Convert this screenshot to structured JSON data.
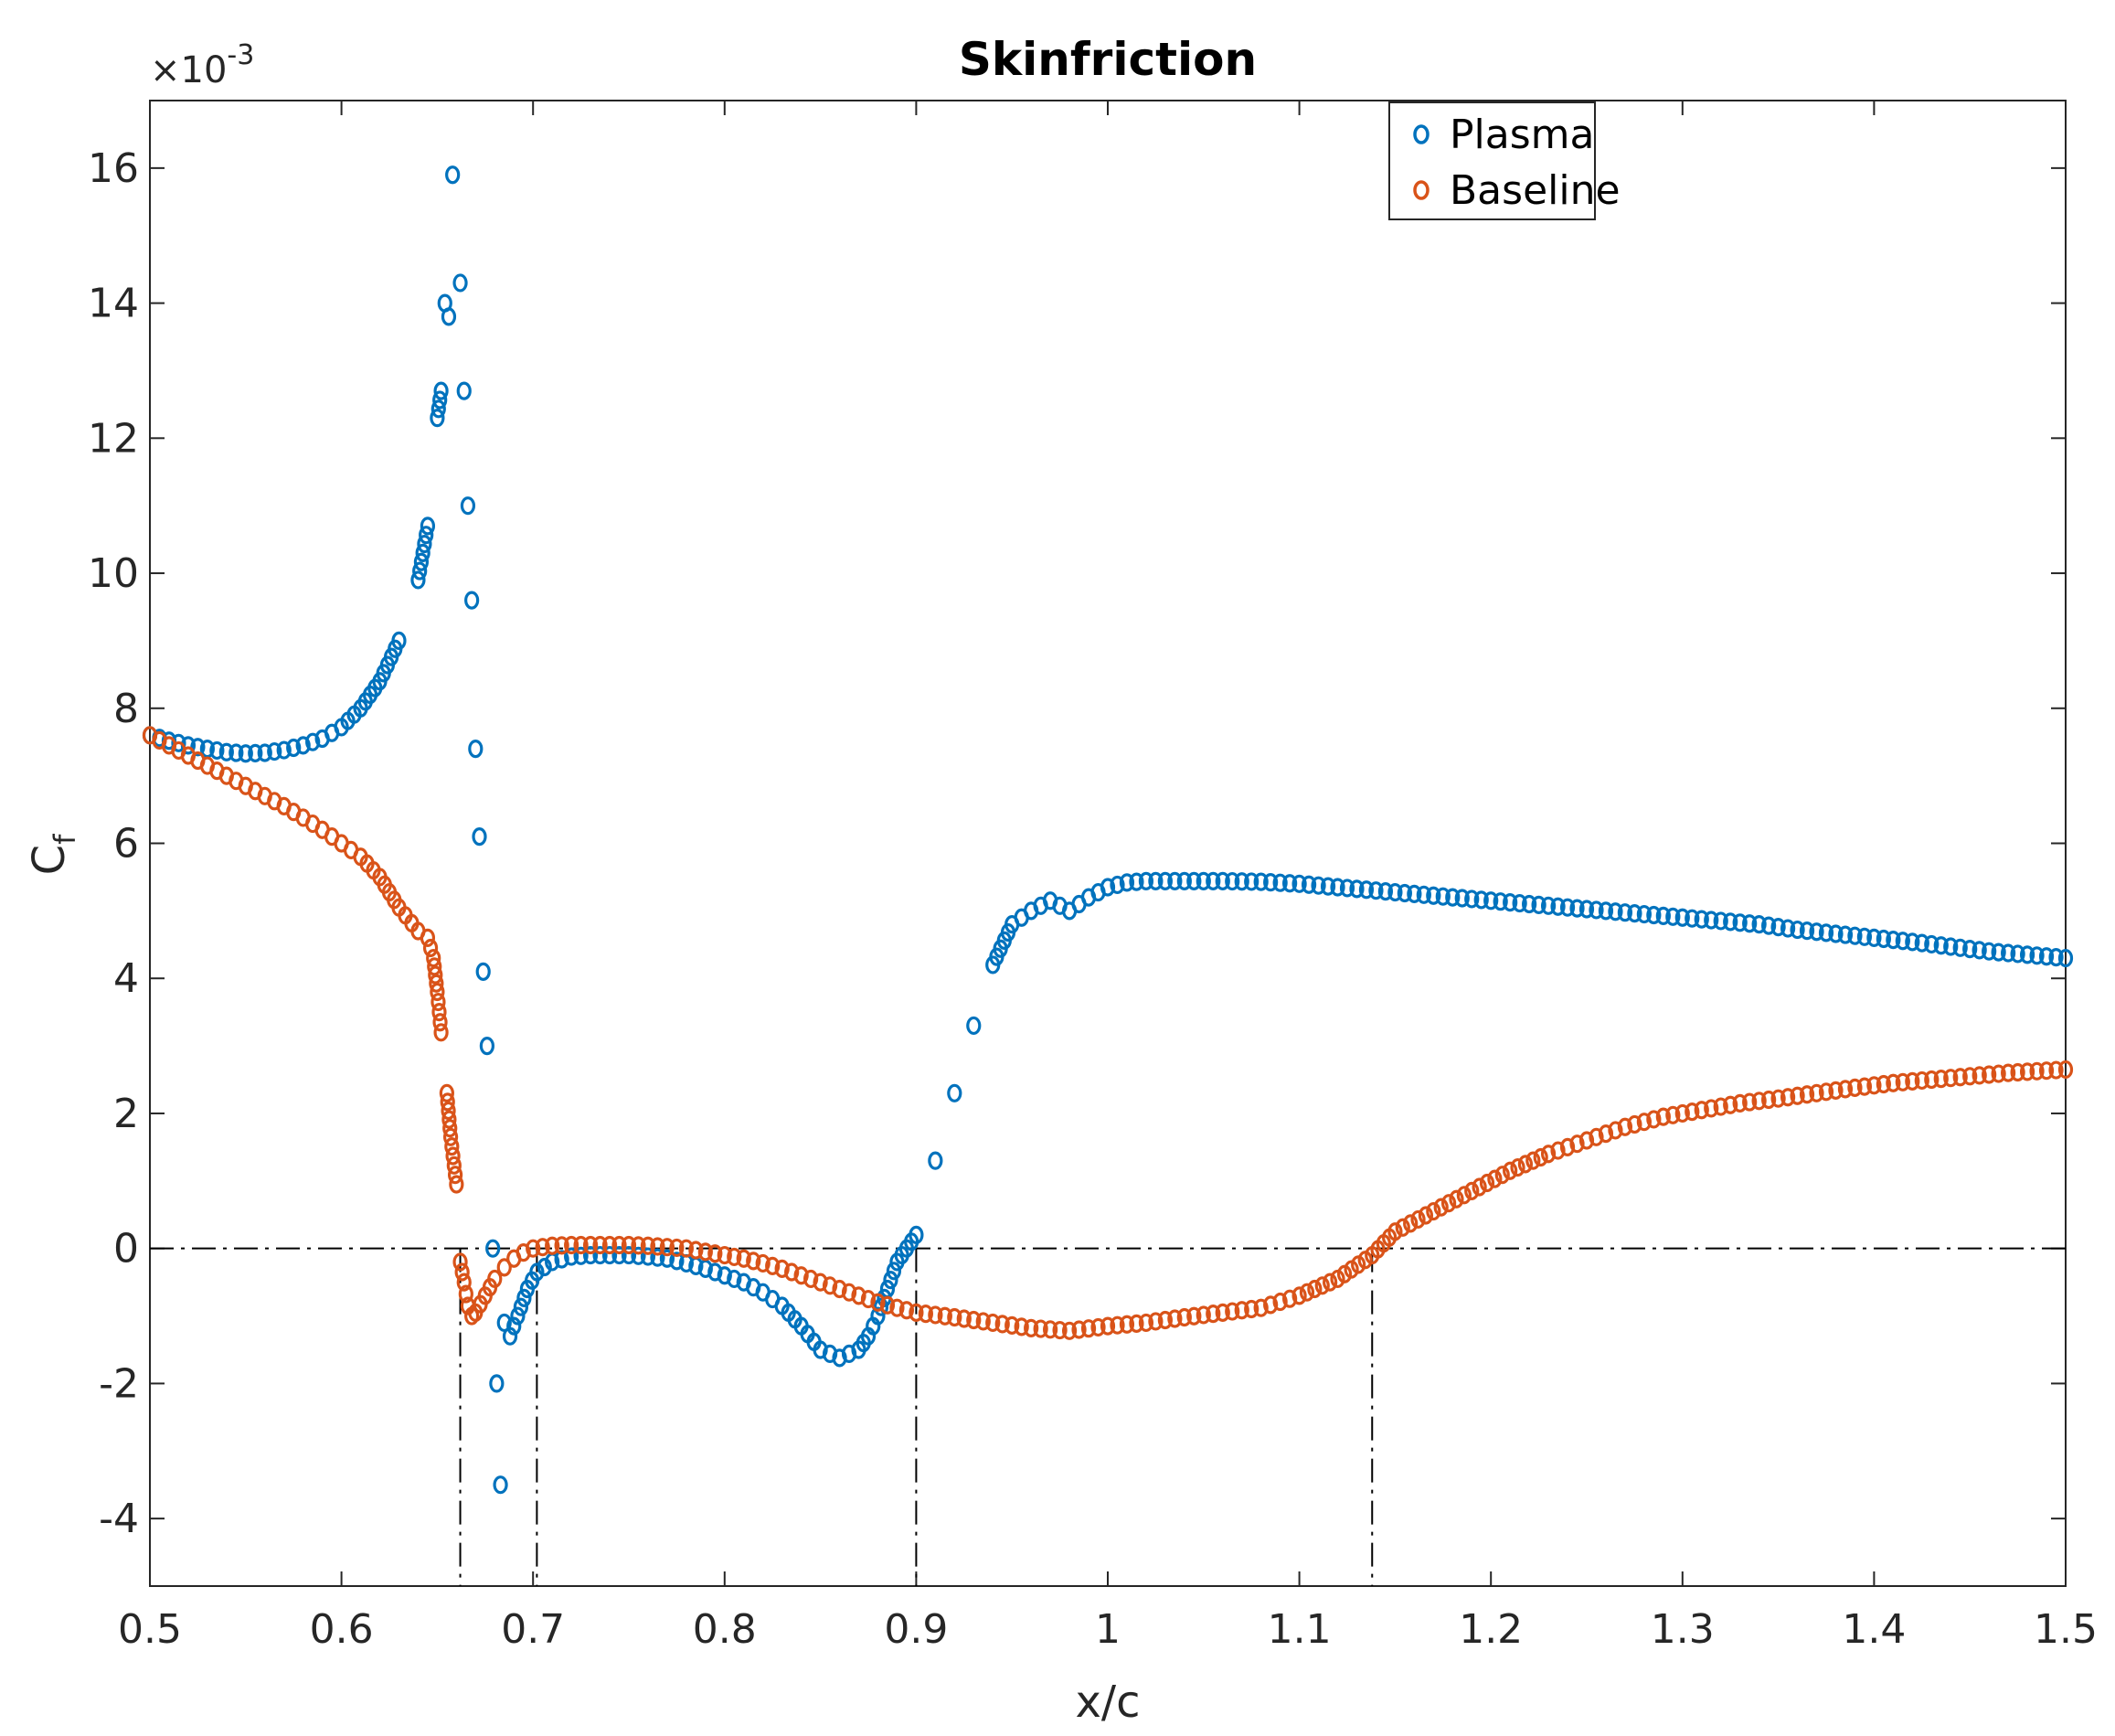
{
  "chart_data": {
    "type": "scatter",
    "title": "Skinfriction",
    "xlabel": "x/c",
    "ylabel_main": "C",
    "ylabel_sub": "f",
    "y_exponent_prefix": "×10",
    "y_exponent_power": "-3",
    "xlim": [
      0.5,
      1.5
    ],
    "ylim": [
      -5,
      17
    ],
    "x_ticks": [
      0.5,
      0.6,
      0.7,
      0.8,
      0.9,
      1,
      1.1,
      1.2,
      1.3,
      1.4,
      1.5
    ],
    "x_tick_labels": [
      "0.5",
      "0.6",
      "0.7",
      "0.8",
      "0.9",
      "1",
      "1.1",
      "1.2",
      "1.3",
      "1.4",
      "1.5"
    ],
    "y_ticks": [
      -4,
      -2,
      0,
      2,
      4,
      6,
      8,
      10,
      12,
      14,
      16
    ],
    "y_tick_labels": [
      "-4",
      "-2",
      "0",
      "2",
      "4",
      "6",
      "8",
      "10",
      "12",
      "14",
      "16"
    ],
    "legend_position": "top-right",
    "reference_lines": {
      "horizontal_y": 0,
      "vertical_x": [
        0.662,
        0.702,
        0.9,
        1.138
      ]
    },
    "series": [
      {
        "name": "Plasma",
        "color": "#0072BD",
        "x": [
          0.5,
          0.51,
          0.52,
          0.53,
          0.54,
          0.55,
          0.56,
          0.57,
          0.58,
          0.59,
          0.6,
          0.61,
          0.62,
          0.63,
          0.64,
          0.645,
          0.65,
          0.652,
          0.654,
          0.656,
          0.658,
          0.662,
          0.664,
          0.666,
          0.668,
          0.67,
          0.672,
          0.674,
          0.676,
          0.679,
          0.681,
          0.683,
          0.685,
          0.688,
          0.692,
          0.697,
          0.702,
          0.71,
          0.72,
          0.73,
          0.74,
          0.75,
          0.76,
          0.77,
          0.78,
          0.79,
          0.8,
          0.81,
          0.82,
          0.83,
          0.84,
          0.85,
          0.86,
          0.87,
          0.875,
          0.88,
          0.885,
          0.89,
          0.9,
          0.91,
          0.92,
          0.93,
          0.94,
          0.95,
          0.96,
          0.97,
          0.98,
          0.99,
          1.0,
          1.01,
          1.02,
          1.04,
          1.06,
          1.08,
          1.1,
          1.12,
          1.14,
          1.16,
          1.18,
          1.2,
          1.22,
          1.24,
          1.26,
          1.28,
          1.3,
          1.32,
          1.34,
          1.36,
          1.38,
          1.4,
          1.42,
          1.44,
          1.46,
          1.48,
          1.5
        ],
        "y": [
          7.6,
          7.52,
          7.45,
          7.4,
          7.35,
          7.33,
          7.34,
          7.38,
          7.45,
          7.55,
          7.72,
          8.0,
          8.4,
          9.0,
          9.9,
          10.7,
          12.3,
          12.7,
          14.0,
          13.8,
          15.9,
          14.3,
          12.7,
          11.0,
          9.6,
          7.4,
          6.1,
          4.1,
          3.0,
          0.0,
          -2.0,
          -3.5,
          -1.1,
          -1.3,
          -1.0,
          -0.6,
          -0.35,
          -0.2,
          -0.12,
          -0.1,
          -0.1,
          -0.1,
          -0.12,
          -0.15,
          -0.22,
          -0.3,
          -0.4,
          -0.5,
          -0.65,
          -0.85,
          -1.15,
          -1.5,
          -1.62,
          -1.5,
          -1.3,
          -1.0,
          -0.6,
          -0.2,
          0.2,
          1.3,
          2.3,
          3.3,
          4.2,
          4.8,
          5.0,
          5.15,
          5.0,
          5.2,
          5.35,
          5.42,
          5.44,
          5.44,
          5.44,
          5.43,
          5.4,
          5.35,
          5.3,
          5.25,
          5.2,
          5.15,
          5.1,
          5.05,
          5.0,
          4.95,
          4.9,
          4.85,
          4.8,
          4.72,
          4.66,
          4.6,
          4.54,
          4.47,
          4.4,
          4.35,
          4.3
        ]
      },
      {
        "name": "Baseline",
        "color": "#D95319",
        "x": [
          0.5,
          0.51,
          0.52,
          0.53,
          0.54,
          0.55,
          0.56,
          0.57,
          0.58,
          0.59,
          0.6,
          0.61,
          0.62,
          0.63,
          0.64,
          0.645,
          0.648,
          0.65,
          0.652,
          0.655,
          0.657,
          0.66,
          0.662,
          0.664,
          0.666,
          0.668,
          0.67,
          0.675,
          0.68,
          0.685,
          0.69,
          0.695,
          0.7,
          0.71,
          0.72,
          0.73,
          0.74,
          0.75,
          0.76,
          0.77,
          0.78,
          0.79,
          0.8,
          0.81,
          0.82,
          0.83,
          0.84,
          0.85,
          0.86,
          0.87,
          0.88,
          0.89,
          0.9,
          0.92,
          0.94,
          0.96,
          0.98,
          1.0,
          1.02,
          1.04,
          1.06,
          1.08,
          1.1,
          1.12,
          1.138,
          1.15,
          1.17,
          1.19,
          1.21,
          1.23,
          1.25,
          1.27,
          1.29,
          1.31,
          1.33,
          1.35,
          1.37,
          1.39,
          1.41,
          1.43,
          1.45,
          1.47,
          1.5
        ],
        "y": [
          7.6,
          7.45,
          7.3,
          7.15,
          7.0,
          6.85,
          6.7,
          6.55,
          6.38,
          6.2,
          6.0,
          5.8,
          5.5,
          5.05,
          4.7,
          4.6,
          4.3,
          3.8,
          3.2,
          2.3,
          1.65,
          0.95,
          -0.2,
          -0.5,
          -0.85,
          -1.0,
          -0.95,
          -0.7,
          -0.45,
          -0.28,
          -0.15,
          -0.06,
          0.0,
          0.04,
          0.05,
          0.05,
          0.05,
          0.05,
          0.04,
          0.02,
          0.0,
          -0.05,
          -0.1,
          -0.15,
          -0.22,
          -0.3,
          -0.4,
          -0.5,
          -0.6,
          -0.7,
          -0.8,
          -0.88,
          -0.95,
          -1.02,
          -1.1,
          -1.18,
          -1.22,
          -1.15,
          -1.1,
          -1.02,
          -0.95,
          -0.88,
          -0.7,
          -0.45,
          -0.1,
          0.25,
          0.55,
          0.85,
          1.15,
          1.4,
          1.6,
          1.8,
          1.95,
          2.05,
          2.15,
          2.22,
          2.3,
          2.38,
          2.45,
          2.5,
          2.55,
          2.6,
          2.65
        ]
      }
    ]
  }
}
